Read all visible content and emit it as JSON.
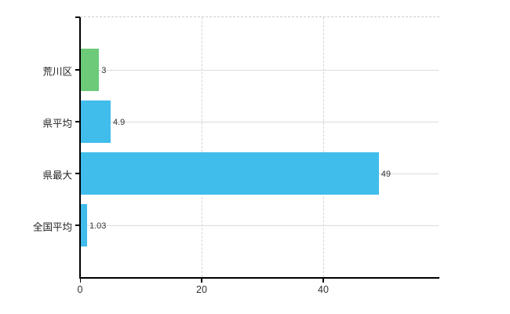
{
  "chart_data": {
    "type": "bar",
    "orientation": "horizontal",
    "title": "",
    "xlabel": "",
    "ylabel": "",
    "categories": [
      "荒川区",
      "県平均",
      "県最大",
      "全国平均"
    ],
    "values": [
      3,
      4.9,
      49,
      1.03
    ],
    "value_labels": [
      "3",
      "4.9",
      "49",
      "1.03"
    ],
    "colors": [
      "#6dca78",
      "#41bdeb",
      "#41bdeb",
      "#41bdeb"
    ],
    "x_ticks": [
      0,
      20,
      40
    ],
    "x_tick_labels": [
      "0",
      "20",
      "40"
    ],
    "xlim": [
      0,
      59.1
    ],
    "grid": true,
    "legend": false
  },
  "colors": {
    "bar_green": "#6dca78",
    "bar_blue": "#41bdeb",
    "axis": "#000000",
    "grid_horizontal": "#d9ded9",
    "grid_vertical": "#d2d8d2",
    "plot_top_border": "#cccccc",
    "text": "#333333",
    "background": "#ffffff"
  }
}
